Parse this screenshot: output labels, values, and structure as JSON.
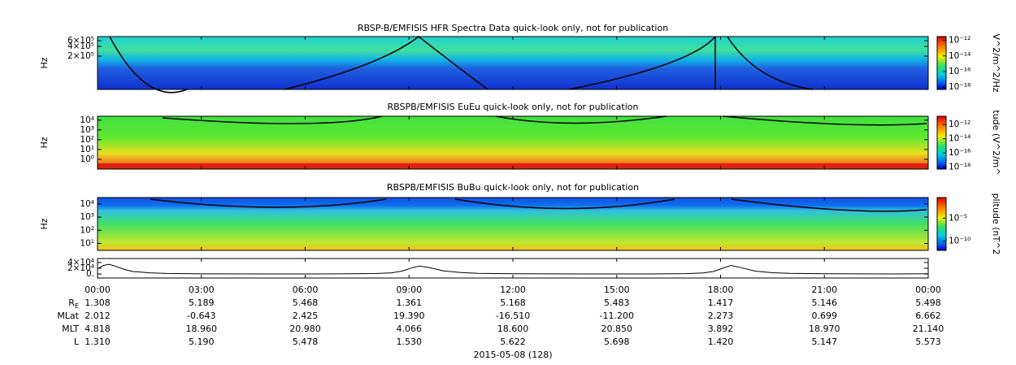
{
  "chart_data": [
    {
      "type": "spectrogram",
      "title": "RBSP-B/EMFISIS  HFR Spectra Data quick-look only, not for publication",
      "ylabel": "Hz",
      "log_y": true,
      "ylim": [
        19000,
        800000
      ],
      "yticks": [
        {
          "value": 200000,
          "label": "2×10⁵"
        },
        {
          "value": 400000,
          "label": "4×10⁵"
        },
        {
          "value": 600000,
          "label": "6×10⁵"
        }
      ],
      "colorbar": {
        "label": "V^2/m^2/Hz",
        "clim": [
          5e-19,
          3e-12
        ],
        "ticks": [
          {
            "value": 1e-12,
            "label": "10⁻¹²"
          },
          {
            "value": 1e-14,
            "label": "10⁻¹⁴"
          },
          {
            "value": 1e-16,
            "label": "10⁻¹⁶"
          },
          {
            "value": 1e-18,
            "label": "10⁻¹⁸"
          }
        ]
      }
    },
    {
      "type": "spectrogram",
      "title": "RBSPB/EMFISIS  EuEu quick-look only, not for publication",
      "ylabel": "Hz",
      "log_y": true,
      "ylim": [
        0.1,
        25000
      ],
      "yticks": [
        {
          "value": 1,
          "label": "10⁰"
        },
        {
          "value": 10,
          "label": "10¹"
        },
        {
          "value": 100,
          "label": "10²"
        },
        {
          "value": 1000,
          "label": "10³"
        },
        {
          "value": 10000,
          "label": "10⁴"
        }
      ],
      "colorbar": {
        "label": "tude (V^2/m^",
        "clim": [
          5e-19,
          1.5e-11
        ],
        "ticks": [
          {
            "value": 1e-12,
            "label": "10⁻¹²"
          },
          {
            "value": 1e-14,
            "label": "10⁻¹⁴"
          },
          {
            "value": 1e-16,
            "label": "10⁻¹⁶"
          },
          {
            "value": 1e-18,
            "label": "10⁻¹⁸"
          }
        ]
      }
    },
    {
      "type": "spectrogram",
      "title": "RBSPB/EMFISIS  BuBu quick-look only, not for publication",
      "ylabel": "Hz",
      "log_y": true,
      "ylim": [
        3,
        30000
      ],
      "yticks": [
        {
          "value": 10,
          "label": "10¹"
        },
        {
          "value": 100,
          "label": "10²"
        },
        {
          "value": 1000,
          "label": "10³"
        },
        {
          "value": 10000,
          "label": "10⁴"
        }
      ],
      "colorbar": {
        "label": "plitude (nT^2",
        "clim": [
          1e-12,
          0.3
        ],
        "ticks": [
          {
            "value": 1e-05,
            "label": "10⁻⁵"
          },
          {
            "value": 1e-10,
            "label": "10⁻¹⁰"
          }
        ]
      }
    },
    {
      "type": "line",
      "color": "#000000",
      "ylim": [
        -14000,
        54000
      ],
      "yticks": [
        {
          "value": 0,
          "label": "0."
        },
        {
          "value": 20000,
          "label": "2×10⁴"
        },
        {
          "value": 40000,
          "label": "4×10⁴"
        }
      ],
      "x": [
        0,
        0.17,
        0.33,
        0.5,
        0.75,
        1,
        1.5,
        2,
        3,
        5,
        7,
        8,
        8.5,
        8.8,
        9.1,
        9.3,
        9.6,
        10,
        10.5,
        11,
        12,
        14,
        16,
        17,
        17.5,
        17.8,
        18.1,
        18.3,
        18.6,
        19,
        19.5,
        20,
        21,
        23,
        24
      ],
      "values": [
        18000,
        30000,
        34000,
        28000,
        17000,
        9000,
        4000,
        2000,
        500,
        200,
        400,
        1500,
        4000,
        10000,
        22000,
        28000,
        22000,
        11000,
        5000,
        2500,
        800,
        200,
        300,
        1200,
        3500,
        9000,
        22000,
        30000,
        22000,
        10000,
        4500,
        2200,
        800,
        300,
        600
      ]
    }
  ],
  "time_axis": {
    "xlim": [
      0,
      24
    ],
    "xticks": [
      {
        "value": 0,
        "label": "00:00"
      },
      {
        "value": 3,
        "label": "03:00"
      },
      {
        "value": 6,
        "label": "06:00"
      },
      {
        "value": 9,
        "label": "09:00"
      },
      {
        "value": 12,
        "label": "12:00"
      },
      {
        "value": 15,
        "label": "15:00"
      },
      {
        "value": 18,
        "label": "18:00"
      },
      {
        "value": 21,
        "label": "21:00"
      },
      {
        "value": 24,
        "label": "00:00"
      }
    ],
    "rows": [
      {
        "label": "R",
        "subscript": "E",
        "values": [
          "1.308",
          "5.189",
          "5.468",
          "1.361",
          "5.168",
          "5.483",
          "1.417",
          "5.146",
          "5.498"
        ]
      },
      {
        "label": "MLat",
        "values": [
          "2.012",
          "-0.643",
          "2.425",
          "19.390",
          "-16.510",
          "-11.200",
          "2.273",
          "0.699",
          "6.662"
        ]
      },
      {
        "label": "MLT",
        "values": [
          "4.818",
          "18.960",
          "20.980",
          "4.066",
          "18.600",
          "20.850",
          "3.892",
          "18.970",
          "21.140"
        ]
      },
      {
        "label": "L",
        "values": [
          "1.310",
          "5.190",
          "5.478",
          "1.530",
          "5.622",
          "5.698",
          "1.420",
          "5.147",
          "5.573"
        ]
      }
    ],
    "date": "2015-05-08 (128)"
  }
}
